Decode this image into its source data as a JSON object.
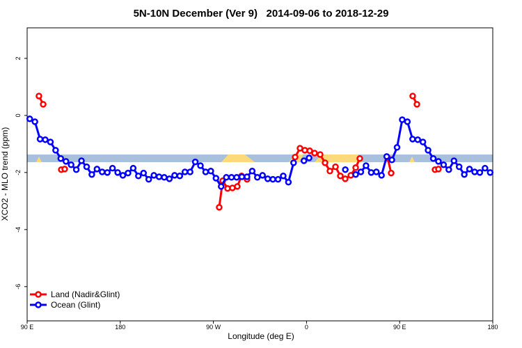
{
  "chart_data": {
    "type": "line",
    "title": "5N-10N December (Ver 9)   2014-09-06 to 2018-12-29",
    "x_label": "Longitude (deg E)",
    "y_label": "XCO2 - MLO trend (ppm)",
    "xlim": [
      90,
      540
    ],
    "ylim": [
      -7.2,
      3.07
    ],
    "xticks": [
      {
        "value": 90,
        "label": "90 E"
      },
      180,
      {
        "value": 270,
        "label": "90 W"
      },
      {
        "value": 360,
        "label": "0"
      },
      {
        "value": 450,
        "label": "90 E"
      },
      {
        "value": 540,
        "label": "180"
      }
    ],
    "yticks": [
      2,
      0,
      -2,
      -4,
      -6
    ],
    "legend": "bottom-left",
    "series": [
      {
        "name": "Land (Nadir&Glint)",
        "color": "#ff0000",
        "x": [
          101.4,
          105.5,
          null,
          123,
          126.3,
          null,
          275.6,
          279,
          283.7,
          288.4,
          293.1,
          297.2,
          302.5,
          null,
          349,
          353.7,
          358.4,
          363.1,
          367.8,
          373.2,
          377.9,
          382.6,
          388,
          392.7,
          397.4,
          402.8,
          407.5,
          411.5,
          null,
          438.4,
          441.8,
          null,
          462.6,
          466.7,
          null,
          484.2,
          487.5
        ],
        "values": [
          0.68,
          0.39,
          null,
          -1.9,
          -1.88,
          null,
          -3.22,
          -2.29,
          -2.56,
          -2.54,
          -2.49,
          -2.12,
          -2.24,
          null,
          -1.46,
          -1.15,
          -1.22,
          -1.24,
          -1.32,
          -1.37,
          -1.66,
          -1.95,
          -1.8,
          -2.12,
          -2.22,
          -2.1,
          -1.83,
          -1.51,
          null,
          -1.49,
          -2.02,
          null,
          0.68,
          0.39,
          null,
          -1.9,
          -1.88
        ]
      },
      {
        "name": "Ocean (Glint)",
        "color": "#0000ff",
        "x": [
          92.5,
          97.5,
          102.5,
          107.5,
          112.5,
          117.5,
          122.5,
          127.5,
          132.5,
          137.5,
          142.5,
          147.5,
          152.5,
          157.5,
          162.5,
          167.5,
          172.5,
          177.5,
          182.5,
          187.5,
          192.5,
          197.5,
          202.5,
          207.5,
          212.5,
          217.5,
          222.5,
          227.5,
          232.5,
          237.5,
          242.5,
          247.5,
          252.5,
          257.5,
          262.5,
          267.5,
          272.5,
          277.5,
          282.5,
          287.5,
          292.5,
          297.5,
          302.5,
          307.5,
          312.5,
          317.5,
          322.5,
          327.5,
          332.5,
          337.5,
          342.5,
          347.5,
          352.5,
          357.5,
          362.5,
          367.5,
          397.5,
          402.5,
          407.5,
          412.5,
          417.5,
          422.5,
          427.5,
          432.5,
          437.5,
          442.5,
          447.5,
          452.5,
          457.5,
          462.5,
          467.5,
          472.5,
          477.5,
          482.5,
          487.5,
          492.5,
          497.5,
          502.5,
          507.5,
          512.5,
          517.5,
          522.5,
          527.5,
          532.5,
          537.5
        ],
        "values": [
          -0.12,
          -0.22,
          -0.83,
          -0.85,
          -0.93,
          -1.22,
          -1.51,
          -1.61,
          -1.73,
          -1.9,
          -1.59,
          -1.8,
          -2.07,
          -1.88,
          -1.98,
          -2.0,
          -1.85,
          -2.0,
          -2.1,
          -2.02,
          -1.85,
          -2.12,
          -2.02,
          -2.24,
          -2.1,
          -2.15,
          -2.17,
          -2.22,
          -2.1,
          -2.12,
          -1.98,
          -1.98,
          -1.63,
          -1.76,
          -1.98,
          -1.95,
          -2.2,
          -2.49,
          -2.17,
          -2.17,
          -2.17,
          -2.15,
          -2.15,
          -1.95,
          -2.17,
          -2.1,
          -2.22,
          -2.24,
          -2.24,
          -2.12,
          -2.34,
          -1.66,
          null,
          -1.59,
          -1.49,
          null,
          -1.9,
          null,
          -2.07,
          -1.98,
          -1.76,
          -2.0,
          -1.98,
          -2.1,
          -1.44,
          -1.56,
          -1.12,
          -0.15,
          -0.22,
          -0.83,
          -0.85,
          -0.93,
          -1.22,
          -1.51,
          -1.61,
          -1.73,
          -1.9,
          -1.59,
          -1.8,
          -2.07,
          -1.88,
          -1.98,
          -2.0,
          -1.85,
          -2.0
        ]
      }
    ]
  }
}
